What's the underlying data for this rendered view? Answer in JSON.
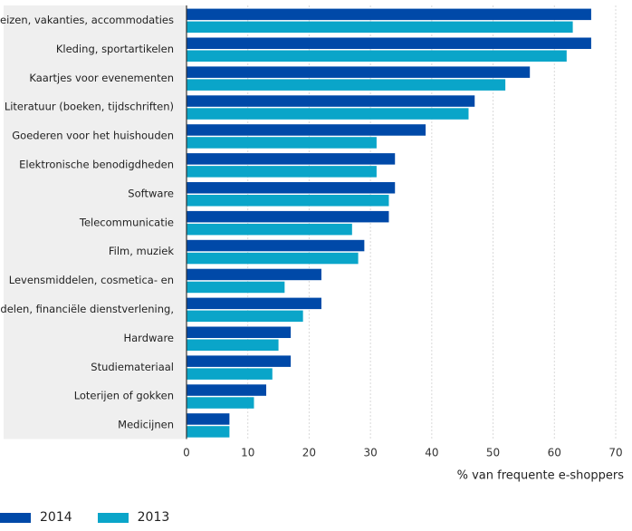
{
  "chart_data": {
    "type": "bar",
    "orientation": "horizontal",
    "categories": [
      "Reizen, vakanties, accommodaties",
      "Kleding, sportartikelen",
      "Kaartjes voor evenementen",
      "Literatuur (boeken, tijdschriften)",
      "Goederen voor het huishouden",
      "Elektronische benodigdheden",
      "Software",
      "Telecommunicatie",
      "Film, muziek",
      "Levensmiddelen, cosmetica- en",
      "Aandelen, financiële dienstverlening,",
      "Hardware",
      "Studiemateriaal",
      "Loterijen of gokken",
      "Medicijnen"
    ],
    "series": [
      {
        "name": "2014",
        "color": "#0049a8",
        "values": [
          66,
          66,
          56,
          47,
          39,
          34,
          34,
          33,
          29,
          22,
          22,
          17,
          17,
          13,
          7
        ]
      },
      {
        "name": "2013",
        "color": "#0aa5c9",
        "values": [
          63,
          62,
          52,
          46,
          31,
          31,
          33,
          27,
          28,
          16,
          19,
          15,
          14,
          11,
          7
        ]
      }
    ],
    "xlabel": "% van frequente e-shoppers",
    "xlim": [
      0,
      70
    ],
    "xticks": [
      0,
      10,
      20,
      30,
      40,
      50,
      60,
      70
    ],
    "grid": "vertical",
    "legend": "bottom-left"
  }
}
